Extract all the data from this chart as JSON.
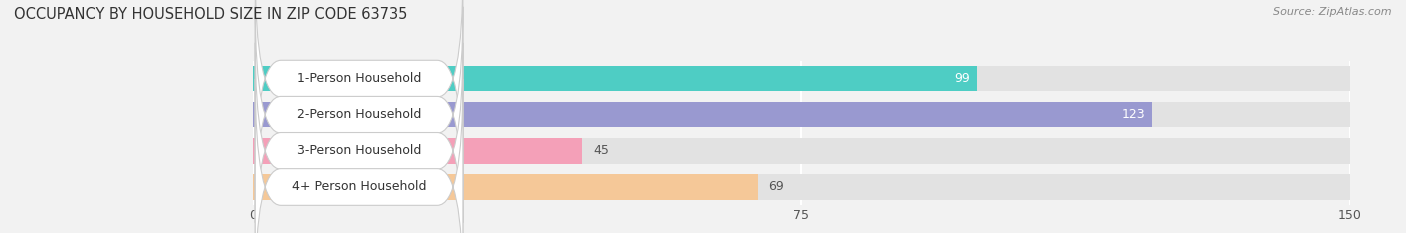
{
  "title": "OCCUPANCY BY HOUSEHOLD SIZE IN ZIP CODE 63735",
  "source": "Source: ZipAtlas.com",
  "categories": [
    "1-Person Household",
    "2-Person Household",
    "3-Person Household",
    "4+ Person Household"
  ],
  "values": [
    99,
    123,
    45,
    69
  ],
  "bar_colors": [
    "#4ECDC4",
    "#9999D0",
    "#F4A0B8",
    "#F5C898"
  ],
  "xlim": [
    0,
    150
  ],
  "xticks": [
    0,
    75,
    150
  ],
  "background_color": "#f2f2f2",
  "bar_bg_color": "#e2e2e2",
  "title_fontsize": 10.5,
  "label_fontsize": 9,
  "value_fontsize": 9
}
